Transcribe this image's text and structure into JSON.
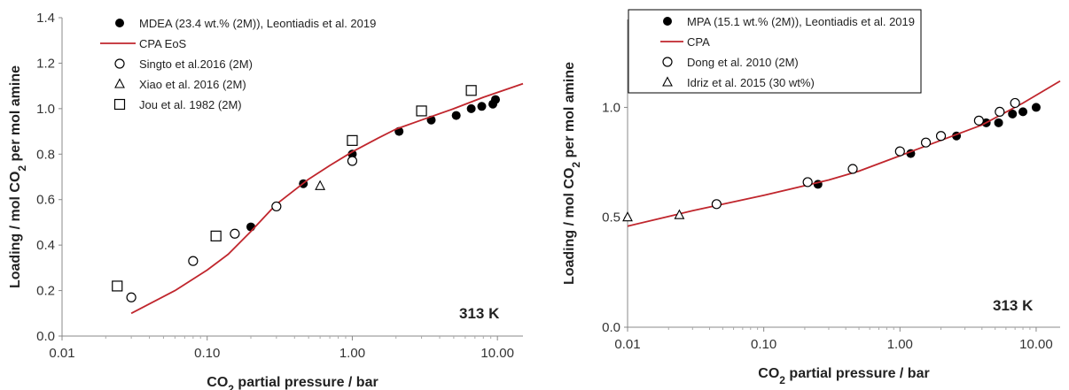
{
  "chart_data": [
    {
      "type": "scatter",
      "x_scale": "log",
      "xlim": [
        0.01,
        15
      ],
      "ylim": [
        0,
        1.4
      ],
      "x_ticks": [
        "0.01",
        "0.10",
        "1.00",
        "10.00"
      ],
      "y_ticks": [
        "0.0",
        "0.2",
        "0.4",
        "0.6",
        "0.8",
        "1.0",
        "1.2",
        "1.4"
      ],
      "xlabel": "CO₂ partial pressure / bar",
      "ylabel": "Loading / mol CO₂ per mol amine",
      "annotation": "313 K",
      "legend_position": "top-left",
      "series": [
        {
          "name": "MDEA (23.4 wt.% (2M)), Leontiadis et al. 2019",
          "marker": "filled-circle",
          "x": [
            0.2,
            0.46,
            1.0,
            2.1,
            3.5,
            5.2,
            6.6,
            7.8,
            9.3,
            9.7
          ],
          "y": [
            0.48,
            0.67,
            0.8,
            0.9,
            0.95,
            0.97,
            1.0,
            1.01,
            1.02,
            1.04
          ]
        },
        {
          "name": "CPA EoS",
          "marker": "line",
          "color": "#c0262d",
          "x": [
            0.03,
            0.06,
            0.1,
            0.14,
            0.2,
            0.3,
            0.5,
            0.7,
            1.0,
            1.5,
            2,
            3,
            5,
            8,
            15
          ],
          "y": [
            0.1,
            0.2,
            0.29,
            0.36,
            0.46,
            0.58,
            0.69,
            0.75,
            0.81,
            0.87,
            0.91,
            0.95,
            1.0,
            1.05,
            1.11
          ]
        },
        {
          "name": "Singto et al.2016  (2M)",
          "marker": "open-circle",
          "x": [
            0.03,
            0.08,
            0.155,
            0.3,
            1.0
          ],
          "y": [
            0.17,
            0.33,
            0.45,
            0.57,
            0.77
          ]
        },
        {
          "name": "Xiao et al. 2016 (2M)",
          "marker": "open-triangle",
          "x": [
            0.6
          ],
          "y": [
            0.66
          ]
        },
        {
          "name": "Jou et al. 1982 (2M)",
          "marker": "open-square",
          "x": [
            0.024,
            0.115,
            1.0,
            3.0,
            6.6
          ],
          "y": [
            0.22,
            0.44,
            0.86,
            0.99,
            1.08
          ]
        }
      ]
    },
    {
      "type": "scatter",
      "x_scale": "log",
      "xlim": [
        0.01,
        15
      ],
      "ylim": [
        0,
        1.4
      ],
      "x_ticks": [
        "0.01",
        "0.10",
        "1.00",
        "10.00"
      ],
      "y_ticks": [
        "0.0",
        "0.5",
        "1.0"
      ],
      "xlabel": "CO₂ partial pressure / bar",
      "ylabel": "Loading / mol CO₂ per mol amine",
      "annotation": "313 K",
      "legend_position": "top-left",
      "series": [
        {
          "name": "MPA (15.1 wt.% (2M)), Leontiadis et al. 2019",
          "marker": "filled-circle",
          "x": [
            0.25,
            1.2,
            2.6,
            4.3,
            5.3,
            6.7,
            8.0,
            10.0
          ],
          "y": [
            0.65,
            0.79,
            0.87,
            0.93,
            0.93,
            0.97,
            0.98,
            1.0
          ]
        },
        {
          "name": "CPA",
          "marker": "line",
          "color": "#c0262d",
          "x": [
            0.01,
            0.03,
            0.1,
            0.3,
            0.5,
            1.0,
            2,
            4,
            8,
            15
          ],
          "y": [
            0.46,
            0.53,
            0.6,
            0.67,
            0.71,
            0.78,
            0.85,
            0.92,
            1.02,
            1.12
          ]
        },
        {
          "name": "Dong et al. 2010 (2M)",
          "marker": "open-circle",
          "x": [
            0.045,
            0.21,
            0.45,
            1.0,
            1.55,
            2.0,
            3.8,
            5.4,
            7.0
          ],
          "y": [
            0.56,
            0.66,
            0.72,
            0.8,
            0.84,
            0.87,
            0.94,
            0.98,
            1.02
          ]
        },
        {
          "name": "Idriz et al. 2015 (30 wt%)",
          "marker": "open-triangle",
          "x": [
            0.01,
            0.024
          ],
          "y": [
            0.5,
            0.51
          ]
        }
      ]
    }
  ]
}
